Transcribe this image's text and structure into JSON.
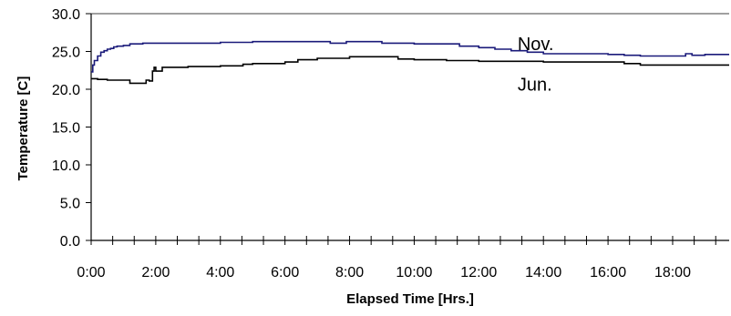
{
  "chart_data": {
    "type": "line",
    "xlabel": "Elapsed Time [Hrs.]",
    "ylabel": "Temperature [C]",
    "ylim": [
      0,
      30
    ],
    "xlim": [
      0,
      19.75
    ],
    "y_ticks": [
      "0.0",
      "5.0",
      "10.0",
      "15.0",
      "20.0",
      "25.0",
      "30.0"
    ],
    "x_ticks": [
      "0:00",
      "2:00",
      "4:00",
      "6:00",
      "8:00",
      "10:00",
      "12:00",
      "14:00",
      "16:00",
      "18:00"
    ],
    "x_minor_step_hours": 0.66667,
    "grid": false,
    "legend": "none",
    "series": [
      {
        "name": "Nov.",
        "color": "#1a1a7a",
        "x": [
          0,
          0.05,
          0.1,
          0.2,
          0.3,
          0.4,
          0.5,
          0.6,
          0.7,
          0.8,
          1.0,
          1.2,
          1.4,
          1.6,
          2.0,
          3.0,
          4.0,
          4.7,
          5.0,
          6.0,
          7.0,
          7.4,
          7.9,
          8.5,
          9.0,
          10.0,
          11.0,
          11.4,
          12.0,
          12.5,
          13.0,
          13.5,
          14.0,
          15.0,
          16.0,
          16.5,
          17.0,
          17.5,
          18.0,
          18.4,
          18.6,
          19.0,
          19.5,
          19.75
        ],
        "y": [
          22.3,
          23.2,
          23.8,
          24.4,
          24.9,
          25.1,
          25.3,
          25.4,
          25.6,
          25.7,
          25.8,
          26.0,
          26.0,
          26.1,
          26.1,
          26.1,
          26.2,
          26.2,
          26.3,
          26.3,
          26.3,
          26.1,
          26.3,
          26.3,
          26.1,
          26.0,
          26.0,
          25.7,
          25.5,
          25.3,
          25.1,
          24.9,
          24.7,
          24.7,
          24.6,
          24.5,
          24.4,
          24.4,
          24.4,
          24.7,
          24.5,
          24.6,
          24.6,
          24.6
        ]
      },
      {
        "name": "Jun.",
        "color": "#000000",
        "x": [
          0,
          0.2,
          0.5,
          1.0,
          1.2,
          1.5,
          1.7,
          1.75,
          1.8,
          1.9,
          1.95,
          2.0,
          2.2,
          2.6,
          3.0,
          4.0,
          4.7,
          5.0,
          6.0,
          6.4,
          7.0,
          8.0,
          9.0,
          9.5,
          10.0,
          11.0,
          12.0,
          13.0,
          14.0,
          15.0,
          16.0,
          16.5,
          17.0,
          18.0,
          19.0,
          19.75
        ],
        "y": [
          21.4,
          21.3,
          21.2,
          21.2,
          20.8,
          20.8,
          21.2,
          21.2,
          21.1,
          22.4,
          22.9,
          22.4,
          22.9,
          22.9,
          23.0,
          23.1,
          23.3,
          23.4,
          23.6,
          23.9,
          24.1,
          24.3,
          24.3,
          24.0,
          23.9,
          23.8,
          23.7,
          23.7,
          23.6,
          23.6,
          23.6,
          23.4,
          23.2,
          23.2,
          23.2,
          23.2
        ]
      }
    ],
    "annotations": [
      {
        "text": "Nov.",
        "x": 13.2,
        "y": 25.2
      },
      {
        "text": "Jun.",
        "x": 13.2,
        "y": 19.8
      }
    ]
  }
}
